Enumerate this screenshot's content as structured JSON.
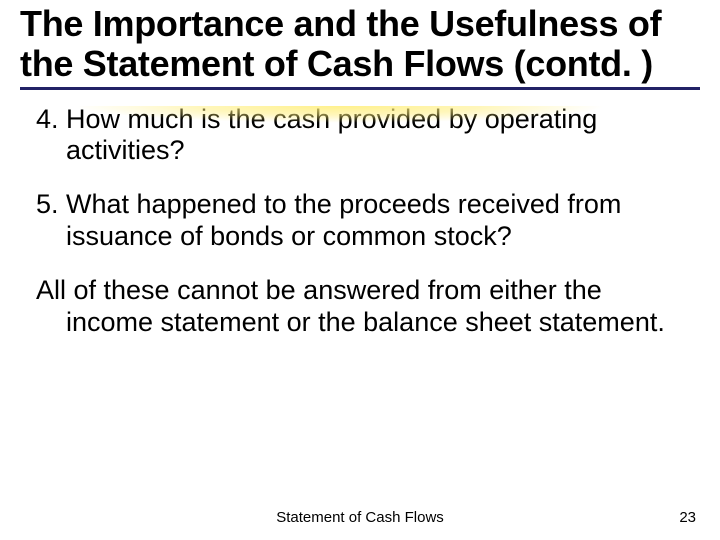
{
  "title": "The Importance and the Usefulness of the Statement of Cash Flows (contd. )",
  "items": [
    "4. How much is the cash provided by operating activities?",
    "5. What happened to the proceeds received from issuance of bonds or common stock?",
    "All of these cannot be answered from either the income statement or the balance sheet statement."
  ],
  "footer": {
    "center": "Statement of Cash Flows",
    "page": "23"
  },
  "style": {
    "title_fontsize": 36,
    "body_fontsize": 27,
    "footer_fontsize": 15,
    "title_underline_color": "#222266",
    "shadow_color": "#ffee78",
    "background": "#ffffff",
    "text_color": "#000000"
  }
}
